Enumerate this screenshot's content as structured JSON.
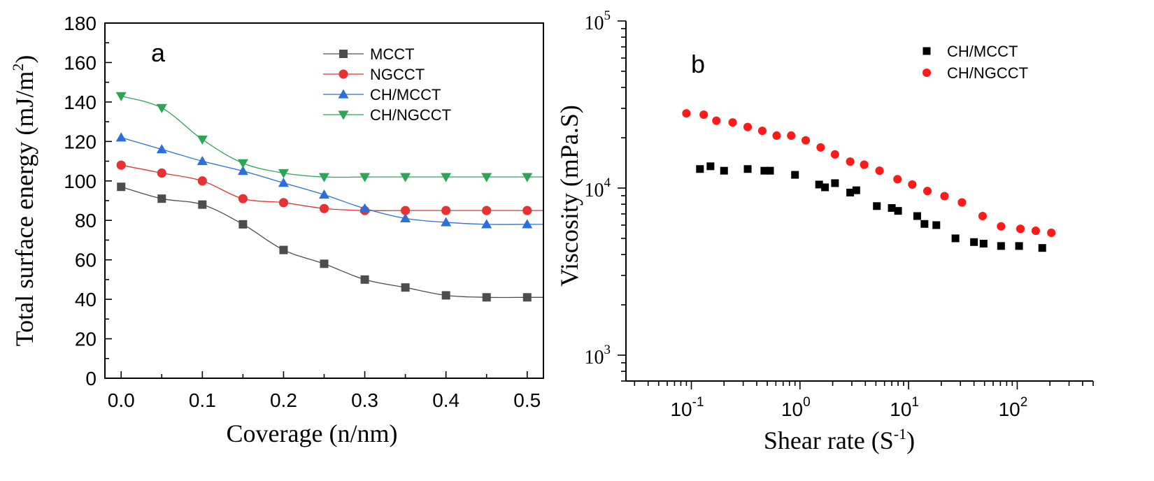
{
  "chart_data": [
    {
      "type": "line",
      "panel_label": "a",
      "xlabel": "Coverage (n/nm)",
      "ylabel": "Total surface energy (mJ/m",
      "ylabel_sup": "2",
      "ylabel_close": ")",
      "xlim": [
        -0.02,
        0.52
      ],
      "ylim": [
        0,
        180
      ],
      "x_ticks": [
        "0.0",
        "0.1",
        "0.2",
        "0.3",
        "0.4",
        "0.5"
      ],
      "y_ticks": [
        "0",
        "20",
        "40",
        "60",
        "80",
        "100",
        "120",
        "140",
        "160",
        "180"
      ],
      "x": [
        0.0,
        0.05,
        0.1,
        0.15,
        0.2,
        0.25,
        0.3,
        0.35,
        0.4,
        0.45,
        0.5
      ],
      "legend_position": "top-right",
      "series": [
        {
          "name": "MCCT",
          "color": "#4d4d4d",
          "marker": "square",
          "values": [
            97,
            91,
            88,
            78,
            65,
            58,
            50,
            46,
            42,
            41,
            41
          ]
        },
        {
          "name": "NGCCT",
          "color": "#e83232",
          "marker": "circle",
          "values": [
            108,
            104,
            100,
            91,
            89,
            86,
            85,
            85,
            85,
            85,
            85
          ]
        },
        {
          "name": "CH/MCCT",
          "color": "#2a6fdb",
          "marker": "triangle-up",
          "values": [
            122,
            116,
            110,
            105,
            99,
            93,
            86,
            81,
            79,
            78,
            78
          ]
        },
        {
          "name": "CH/NGCCT",
          "color": "#2ea556",
          "marker": "triangle-down",
          "values": [
            143,
            137,
            121,
            109,
            104,
            102,
            102,
            102,
            102,
            102,
            102
          ]
        }
      ]
    },
    {
      "type": "scatter",
      "panel_label": "b",
      "xlabel": "Shear rate (S",
      "xlabel_sup": "-1",
      "xlabel_close": ")",
      "ylabel": "Viscosity (mPa.S)",
      "x_scale": "log",
      "y_scale": "log",
      "xlim": [
        0.025,
        500
      ],
      "ylim": [
        700,
        100000
      ],
      "x_tick_labels": [
        {
          "base": "10",
          "exp": "-1"
        },
        {
          "base": "10",
          "exp": "0"
        },
        {
          "base": "10",
          "exp": "1"
        },
        {
          "base": "10",
          "exp": "2"
        }
      ],
      "y_tick_labels": [
        {
          "base": "10",
          "exp": "3"
        },
        {
          "base": "10",
          "exp": "4"
        },
        {
          "base": "10",
          "exp": "5"
        }
      ],
      "legend_position": "top-right",
      "series": [
        {
          "name": "CH/MCCT",
          "color": "#000000",
          "marker": "square",
          "x": [
            0.12,
            0.15,
            0.2,
            0.33,
            0.47,
            0.53,
            0.9,
            1.5,
            1.7,
            2.1,
            2.9,
            3.3,
            5.1,
            7.0,
            8.0,
            12,
            14,
            18,
            27,
            40,
            49,
            71,
            104,
            170
          ],
          "y": [
            13000,
            13500,
            12700,
            13000,
            12700,
            12700,
            12000,
            10500,
            10100,
            10700,
            9400,
            9700,
            7800,
            7600,
            7300,
            6800,
            6100,
            6000,
            5000,
            4750,
            4650,
            4500,
            4500,
            4380
          ]
        },
        {
          "name": "CH/NGCCT",
          "color": "#ff1a1a",
          "marker": "circle",
          "x": [
            0.09,
            0.13,
            0.17,
            0.24,
            0.33,
            0.45,
            0.61,
            0.83,
            1.13,
            1.55,
            2.1,
            2.9,
            3.9,
            5.4,
            7.9,
            10.8,
            14.9,
            21.4,
            31,
            48,
            71,
            107,
            148,
            206
          ],
          "y": [
            28000,
            27500,
            25300,
            24700,
            23200,
            22000,
            20600,
            20600,
            19300,
            17500,
            15900,
            14400,
            13800,
            12700,
            11300,
            10500,
            9600,
            8950,
            8200,
            6800,
            5900,
            5700,
            5550,
            5400
          ]
        }
      ]
    }
  ]
}
